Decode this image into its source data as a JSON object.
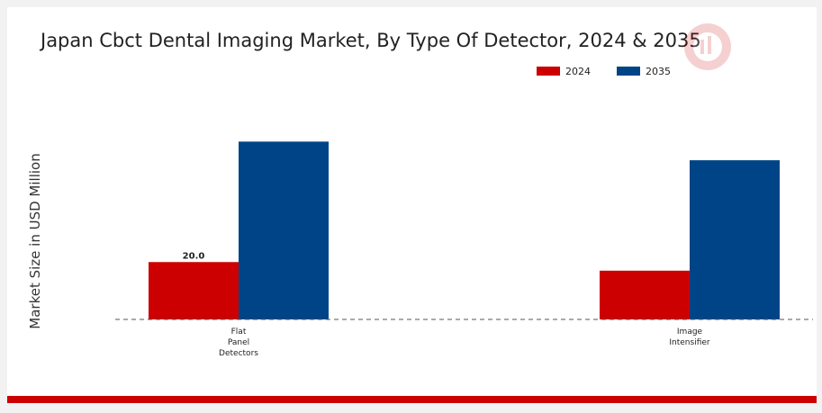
{
  "chart_data": {
    "type": "bar",
    "title": "Japan Cbct Dental Imaging Market, By Type Of Detector, 2024 & 2035",
    "xlabel": "",
    "ylabel": "Market Size in USD Million",
    "categories": [
      [
        "Flat",
        "Panel",
        "Detectors"
      ],
      [
        "Image",
        "Intensifier"
      ]
    ],
    "series": [
      {
        "name": "2024",
        "color": "#cc0000",
        "values": [
          20.0,
          17.0
        ]
      },
      {
        "name": "2035",
        "color": "#004488",
        "values": [
          62.0,
          55.5
        ]
      }
    ],
    "data_labels": [
      {
        "series": 0,
        "category": 0,
        "text": "20.0"
      }
    ],
    "ylim": [
      0,
      80
    ],
    "grid": false,
    "legend": "top-right"
  }
}
